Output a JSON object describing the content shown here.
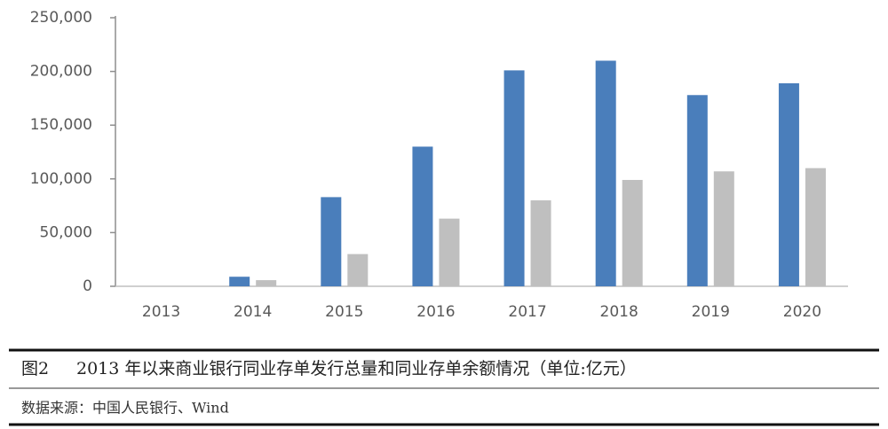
{
  "chart_data": {
    "type": "bar",
    "figure_label": "图2",
    "title": "2013 年以来商业银行同业存单发行总量和同业存单余额情况（单位:亿元）",
    "source": "数据来源：中国人民银行、Wind",
    "categories": [
      "2013",
      "2014",
      "2015",
      "2016",
      "2017",
      "2018",
      "2019",
      "2020"
    ],
    "series": [
      {
        "color": "#4a7ebb",
        "values": [
          0,
          8900,
          83000,
          130000,
          201000,
          210000,
          178000,
          189000
        ]
      },
      {
        "color": "#bfbfbf",
        "values": [
          0,
          5700,
          30000,
          63000,
          80000,
          99000,
          107000,
          110000
        ]
      }
    ],
    "ylim": [
      0,
      250000
    ],
    "yticks": [
      0,
      {
        "value": 50000,
        "label": "50,000"
      },
      {
        "value": 100000,
        "label": "100,000"
      },
      {
        "value": 150000,
        "label": "150,000"
      },
      {
        "value": 200000,
        "label": "200,000"
      },
      {
        "value": 250000,
        "label": "250,000"
      }
    ],
    "grid": false
  }
}
